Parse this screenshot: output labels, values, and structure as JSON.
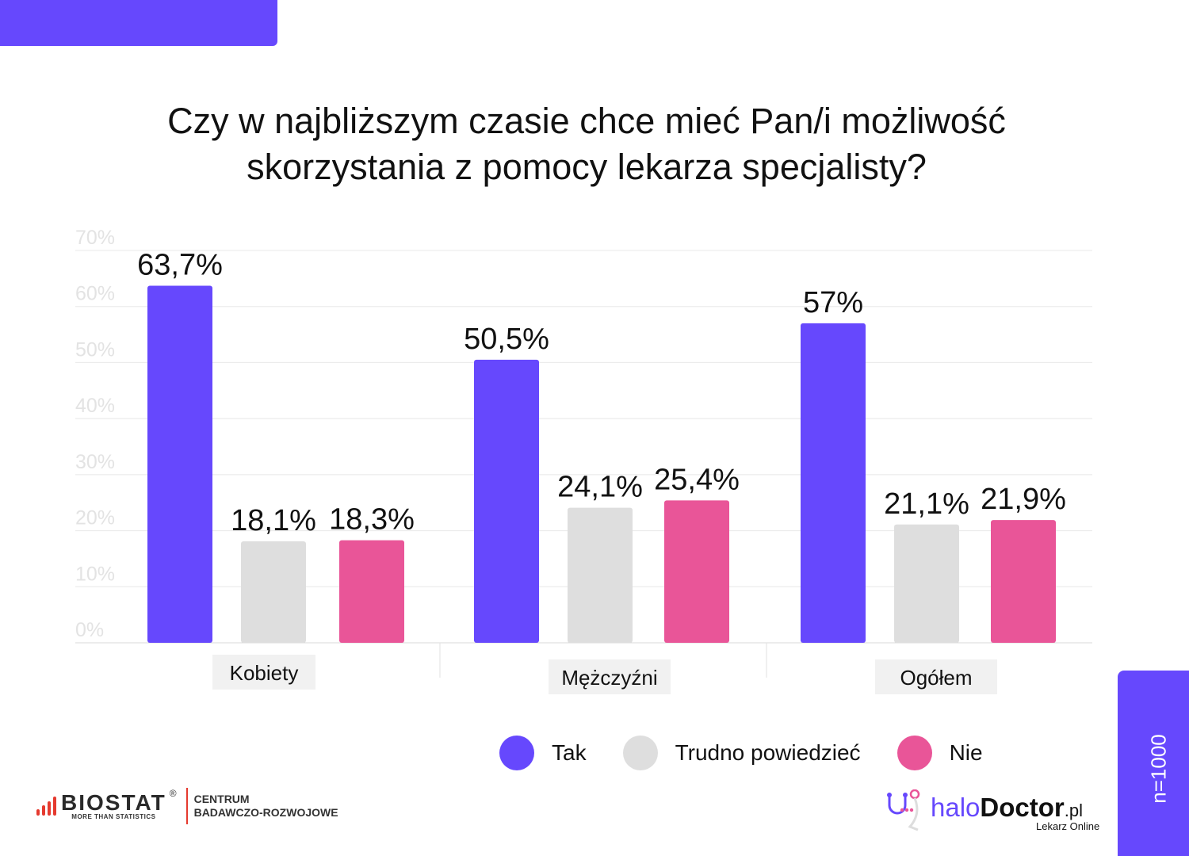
{
  "title": "Czy w najbliższym czasie chce mieć Pan/i możliwość skorzystania z pomocy lekarza specjalisty?",
  "chart_data": {
    "type": "bar",
    "title": "Czy w najbliższym czasie chce mieć Pan/i możliwość skorzystania z pomocy lekarza specjalisty?",
    "categories": [
      "Kobiety",
      "Mężczyźni",
      "Ogółem"
    ],
    "series": [
      {
        "name": "Tak",
        "color": "#6648fd",
        "values": [
          63.7,
          50.5,
          57
        ],
        "labels": [
          "63,7%",
          "50,5%",
          "57%"
        ]
      },
      {
        "name": "Trudno powiedzieć",
        "color": "#dedede",
        "values": [
          18.1,
          24.1,
          21.1
        ],
        "labels": [
          "18,1%",
          "24,1%",
          "21,1%"
        ]
      },
      {
        "name": "Nie",
        "color": "#e95598",
        "values": [
          18.3,
          25.4,
          21.9
        ],
        "labels": [
          "18,3%",
          "25,4%",
          "21,9%"
        ]
      }
    ],
    "yticks": [
      "0%",
      "10%",
      "20%",
      "30%",
      "40%",
      "50%",
      "60%",
      "70%"
    ],
    "ylim": [
      0,
      70
    ],
    "grid": true,
    "legend": "bottom-right"
  },
  "sample": "n=1000",
  "logos": {
    "biostat": "BIOSTAT",
    "biostat_tagline": "MORE THAN STATISTICS",
    "biostat_reg": "®",
    "biostat_centrum_1": "CENTRUM",
    "biostat_centrum_2": "BADAWCZO-ROZWOJOWE",
    "halo_1": "halo",
    "halo_2": "Doctor",
    "halo_3": ".pl",
    "halo_sub": "Lekarz Online"
  }
}
